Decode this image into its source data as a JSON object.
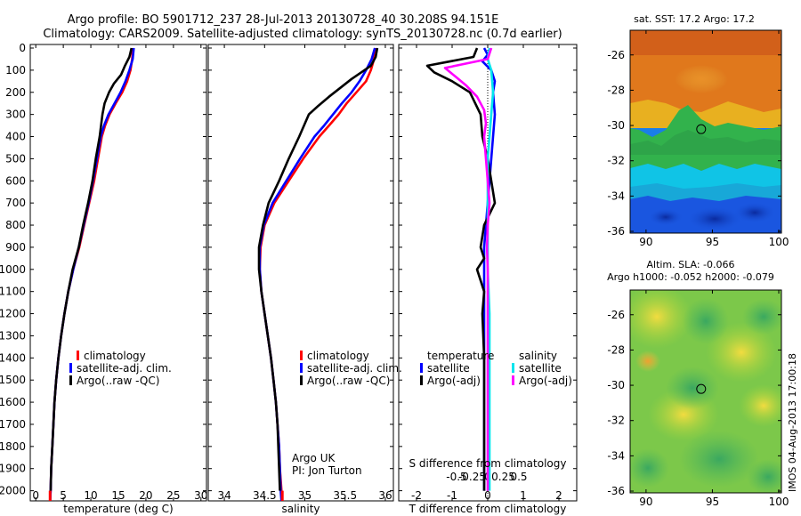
{
  "title": {
    "line1": "Argo profile: BO 5901712_237 28-Jul-2013 20130728_40 30.208S 94.151E",
    "line2": "Climatology: CARS2009. Satellite-adjusted climatology: synTS_20130728.nc (0.7d earlier)"
  },
  "colors": {
    "climatology": "#ff0000",
    "satellite_adj": "#0000ff",
    "argo": "#000000",
    "temp_satellite": "#0000ff",
    "sal_satellite": "#00e5ee",
    "sal_argo": "#ff00ff"
  },
  "legend_temp_salinity": [
    "climatology",
    "satellite-adj. clim.",
    "Argo(..raw -QC)"
  ],
  "diff_legend": {
    "temperature_title": "temperature",
    "salinity_title": "salinity",
    "satellite": "satellite",
    "argo": "Argo(-adj)"
  },
  "annotations": {
    "argo_uk": "Argo UK",
    "pi": "PI: Jon Turton",
    "s_diff_title": "S difference from climatology",
    "imos": "IMOS 04-Aug-2013 17:00:18"
  },
  "maps": {
    "sst_title": "sat. SST: 17.2 Argo: 17.2",
    "sla_title1": "Altim. SLA: -0.066",
    "sla_title2": "Argo h1000: -0.052 h2000: -0.079",
    "lat_ticks": [
      "-26",
      "-28",
      "-30",
      "-32",
      "-34",
      "-36"
    ],
    "lon_ticks": [
      "90",
      "95",
      "100"
    ],
    "argo_lon": 94.151,
    "argo_lat": -30.208
  },
  "chart_data": [
    {
      "type": "line",
      "xlabel": "temperature (deg C)",
      "ylabel": "",
      "xlim": [
        -1,
        31
      ],
      "ylim": [
        2050,
        0
      ],
      "x_ticks": [
        "0",
        "5",
        "10",
        "15",
        "20",
        "25",
        "30"
      ],
      "y_ticks": [
        "0",
        "100",
        "200",
        "300",
        "400",
        "500",
        "600",
        "700",
        "800",
        "900",
        "1000",
        "1100",
        "1200",
        "1300",
        "1400",
        "1500",
        "1600",
        "1700",
        "1800",
        "1900",
        "2000"
      ],
      "series": [
        {
          "name": "climatology",
          "points": [
            [
              17.6,
              0
            ],
            [
              17.5,
              50
            ],
            [
              17.2,
              100
            ],
            [
              16.6,
              150
            ],
            [
              15.7,
              200
            ],
            [
              14.5,
              250
            ],
            [
              13.4,
              300
            ],
            [
              12.6,
              350
            ],
            [
              12.0,
              400
            ],
            [
              11.3,
              500
            ],
            [
              10.6,
              600
            ],
            [
              9.7,
              700
            ],
            [
              8.8,
              800
            ],
            [
              7.9,
              900
            ],
            [
              6.8,
              1000
            ],
            [
              5.9,
              1100
            ],
            [
              5.2,
              1200
            ],
            [
              4.6,
              1300
            ],
            [
              4.1,
              1400
            ],
            [
              3.7,
              1500
            ],
            [
              3.4,
              1600
            ],
            [
              3.2,
              1700
            ],
            [
              3.0,
              1800
            ],
            [
              2.8,
              1900
            ],
            [
              2.7,
              2000
            ],
            [
              2.6,
              2050
            ]
          ]
        },
        {
          "name": "satellite-adj. clim.",
          "points": [
            [
              17.8,
              0
            ],
            [
              17.6,
              50
            ],
            [
              17.0,
              100
            ],
            [
              16.3,
              150
            ],
            [
              15.4,
              200
            ],
            [
              14.3,
              250
            ],
            [
              13.2,
              300
            ],
            [
              12.4,
              350
            ],
            [
              11.8,
              400
            ],
            [
              11.1,
              500
            ],
            [
              10.4,
              600
            ],
            [
              9.6,
              700
            ],
            [
              8.7,
              800
            ],
            [
              7.8,
              900
            ],
            [
              6.8,
              1000
            ],
            [
              5.9,
              1100
            ],
            [
              5.2,
              1200
            ],
            [
              4.6,
              1300
            ],
            [
              4.1,
              1400
            ],
            [
              3.7,
              1500
            ],
            [
              3.4,
              1600
            ],
            [
              3.2,
              1700
            ],
            [
              3.0,
              1800
            ],
            [
              2.8,
              1900
            ],
            [
              2.7,
              2000
            ],
            [
              2.6,
              2050
            ]
          ]
        },
        {
          "name": "Argo(..raw -QC)",
          "points": [
            [
              17.4,
              0
            ],
            [
              17.0,
              40
            ],
            [
              16.2,
              80
            ],
            [
              15.5,
              120
            ],
            [
              14.2,
              160
            ],
            [
              13.3,
              200
            ],
            [
              12.5,
              250
            ],
            [
              12.1,
              300
            ],
            [
              11.6,
              400
            ],
            [
              10.9,
              500
            ],
            [
              10.3,
              600
            ],
            [
              9.5,
              700
            ],
            [
              8.6,
              800
            ],
            [
              7.8,
              900
            ],
            [
              6.7,
              1000
            ],
            [
              5.9,
              1100
            ],
            [
              5.2,
              1200
            ],
            [
              4.6,
              1300
            ],
            [
              4.1,
              1400
            ],
            [
              3.7,
              1500
            ],
            [
              3.4,
              1600
            ],
            [
              3.2,
              1700
            ],
            [
              3.0,
              1800
            ],
            [
              2.8,
              1900
            ],
            [
              2.7,
              2000
            ]
          ]
        }
      ]
    },
    {
      "type": "line",
      "xlabel": "salinity",
      "ylabel": "",
      "xlim": [
        33.8,
        36.1
      ],
      "ylim": [
        2050,
        0
      ],
      "x_ticks": [
        "34",
        "34.5",
        "35",
        "35.5",
        "36"
      ],
      "series": [
        {
          "name": "climatology",
          "points": [
            [
              35.88,
              0
            ],
            [
              35.86,
              50
            ],
            [
              35.82,
              100
            ],
            [
              35.76,
              150
            ],
            [
              35.64,
              200
            ],
            [
              35.52,
              250
            ],
            [
              35.42,
              300
            ],
            [
              35.3,
              350
            ],
            [
              35.18,
              400
            ],
            [
              34.98,
              500
            ],
            [
              34.8,
              600
            ],
            [
              34.62,
              700
            ],
            [
              34.5,
              800
            ],
            [
              34.45,
              900
            ],
            [
              34.44,
              1000
            ],
            [
              34.46,
              1100
            ],
            [
              34.5,
              1200
            ],
            [
              34.54,
              1300
            ],
            [
              34.58,
              1400
            ],
            [
              34.61,
              1500
            ],
            [
              34.64,
              1600
            ],
            [
              34.66,
              1700
            ],
            [
              34.68,
              1800
            ],
            [
              34.69,
              1900
            ],
            [
              34.71,
              2000
            ],
            [
              34.72,
              2050
            ]
          ]
        },
        {
          "name": "satellite-adj. clim.",
          "points": [
            [
              35.87,
              0
            ],
            [
              35.83,
              50
            ],
            [
              35.76,
              100
            ],
            [
              35.68,
              150
            ],
            [
              35.58,
              200
            ],
            [
              35.46,
              250
            ],
            [
              35.35,
              300
            ],
            [
              35.24,
              350
            ],
            [
              35.12,
              400
            ],
            [
              34.94,
              500
            ],
            [
              34.77,
              600
            ],
            [
              34.6,
              700
            ],
            [
              34.49,
              800
            ],
            [
              34.44,
              900
            ],
            [
              34.44,
              1000
            ],
            [
              34.46,
              1100
            ],
            [
              34.5,
              1200
            ],
            [
              34.54,
              1300
            ],
            [
              34.58,
              1400
            ],
            [
              34.61,
              1500
            ],
            [
              34.64,
              1600
            ],
            [
              34.66,
              1700
            ],
            [
              34.68,
              1800
            ],
            [
              34.69,
              1900
            ],
            [
              34.7,
              2000
            ],
            [
              34.71,
              2050
            ]
          ]
        },
        {
          "name": "Argo(..raw -QC)",
          "points": [
            [
              35.9,
              0
            ],
            [
              35.88,
              40
            ],
            [
              35.82,
              80
            ],
            [
              35.7,
              110
            ],
            [
              35.58,
              140
            ],
            [
              35.44,
              180
            ],
            [
              35.3,
              220
            ],
            [
              35.17,
              260
            ],
            [
              35.05,
              300
            ],
            [
              34.93,
              400
            ],
            [
              34.8,
              500
            ],
            [
              34.68,
              600
            ],
            [
              34.55,
              700
            ],
            [
              34.48,
              800
            ],
            [
              34.43,
              900
            ],
            [
              34.43,
              1000
            ],
            [
              34.46,
              1100
            ],
            [
              34.5,
              1200
            ],
            [
              34.54,
              1300
            ],
            [
              34.58,
              1400
            ],
            [
              34.61,
              1500
            ],
            [
              34.64,
              1600
            ],
            [
              34.66,
              1700
            ],
            [
              34.67,
              1800
            ],
            [
              34.68,
              1900
            ],
            [
              34.69,
              2000
            ]
          ]
        }
      ]
    },
    {
      "type": "line",
      "xlabel": "T difference from climatology",
      "ylabel": "",
      "xlim": [
        -2.5,
        2.5
      ],
      "ylim": [
        2050,
        0
      ],
      "x_ticks": [
        "-2",
        "-1",
        "0",
        "1",
        "2"
      ],
      "top_x_ticks": [
        "-0.5",
        "-0.25",
        "0",
        "0.25",
        "0.5"
      ],
      "series": [
        {
          "name": "temperature satellite",
          "points": [
            [
              -0.1,
              0
            ],
            [
              0.0,
              30
            ],
            [
              -0.15,
              60
            ],
            [
              0.1,
              100
            ],
            [
              0.2,
              150
            ],
            [
              0.15,
              200
            ],
            [
              0.2,
              300
            ],
            [
              0.15,
              400
            ],
            [
              0.1,
              500
            ],
            [
              0.05,
              600
            ],
            [
              0.0,
              700
            ],
            [
              -0.05,
              800
            ],
            [
              -0.1,
              900
            ],
            [
              -0.1,
              1000
            ],
            [
              -0.1,
              1100
            ],
            [
              -0.1,
              1200
            ],
            [
              -0.1,
              1300
            ],
            [
              -0.1,
              1400
            ],
            [
              -0.1,
              1500
            ],
            [
              -0.1,
              1600
            ],
            [
              -0.1,
              1700
            ],
            [
              -0.1,
              1800
            ],
            [
              -0.1,
              1900
            ],
            [
              -0.1,
              2000
            ]
          ]
        },
        {
          "name": "temperature Argo(-adj)",
          "points": [
            [
              -0.3,
              0
            ],
            [
              -0.4,
              40
            ],
            [
              -1.7,
              80
            ],
            [
              -1.5,
              110
            ],
            [
              -1.0,
              150
            ],
            [
              -0.5,
              200
            ],
            [
              -0.2,
              300
            ],
            [
              -0.15,
              400
            ],
            [
              0.0,
              500
            ],
            [
              0.1,
              600
            ],
            [
              0.2,
              700
            ],
            [
              -0.1,
              800
            ],
            [
              -0.2,
              900
            ],
            [
              -0.1,
              950
            ],
            [
              -0.3,
              1000
            ],
            [
              -0.1,
              1100
            ],
            [
              -0.15,
              1200
            ],
            [
              -0.1,
              1400
            ],
            [
              -0.1,
              1600
            ],
            [
              -0.1,
              1800
            ],
            [
              -0.1,
              2000
            ]
          ]
        },
        {
          "name": "salinity satellite",
          "points": [
            [
              0.05,
              0
            ],
            [
              0.0,
              50
            ],
            [
              0.1,
              100
            ],
            [
              0.15,
              200
            ],
            [
              0.1,
              300
            ],
            [
              0.05,
              400
            ],
            [
              0.0,
              500
            ],
            [
              0.0,
              600
            ],
            [
              0.0,
              800
            ],
            [
              0.0,
              1000
            ],
            [
              0.05,
              1200
            ],
            [
              0.05,
              1400
            ],
            [
              0.05,
              1600
            ],
            [
              0.05,
              1800
            ],
            [
              0.05,
              2000
            ]
          ]
        },
        {
          "name": "salinity Argo(-adj)",
          "points": [
            [
              0.1,
              0
            ],
            [
              0.0,
              50
            ],
            [
              -1.2,
              90
            ],
            [
              -0.9,
              130
            ],
            [
              -0.6,
              170
            ],
            [
              -0.3,
              220
            ],
            [
              -0.1,
              280
            ],
            [
              -0.05,
              340
            ],
            [
              -0.1,
              400
            ],
            [
              -0.05,
              500
            ],
            [
              0.0,
              600
            ],
            [
              0.05,
              700
            ],
            [
              0.0,
              800
            ],
            [
              -0.02,
              900
            ],
            [
              0.0,
              1000
            ],
            [
              0.0,
              1200
            ],
            [
              0.0,
              1400
            ],
            [
              0.0,
              1600
            ],
            [
              0.0,
              1800
            ],
            [
              0.0,
              2000
            ]
          ]
        }
      ]
    }
  ]
}
